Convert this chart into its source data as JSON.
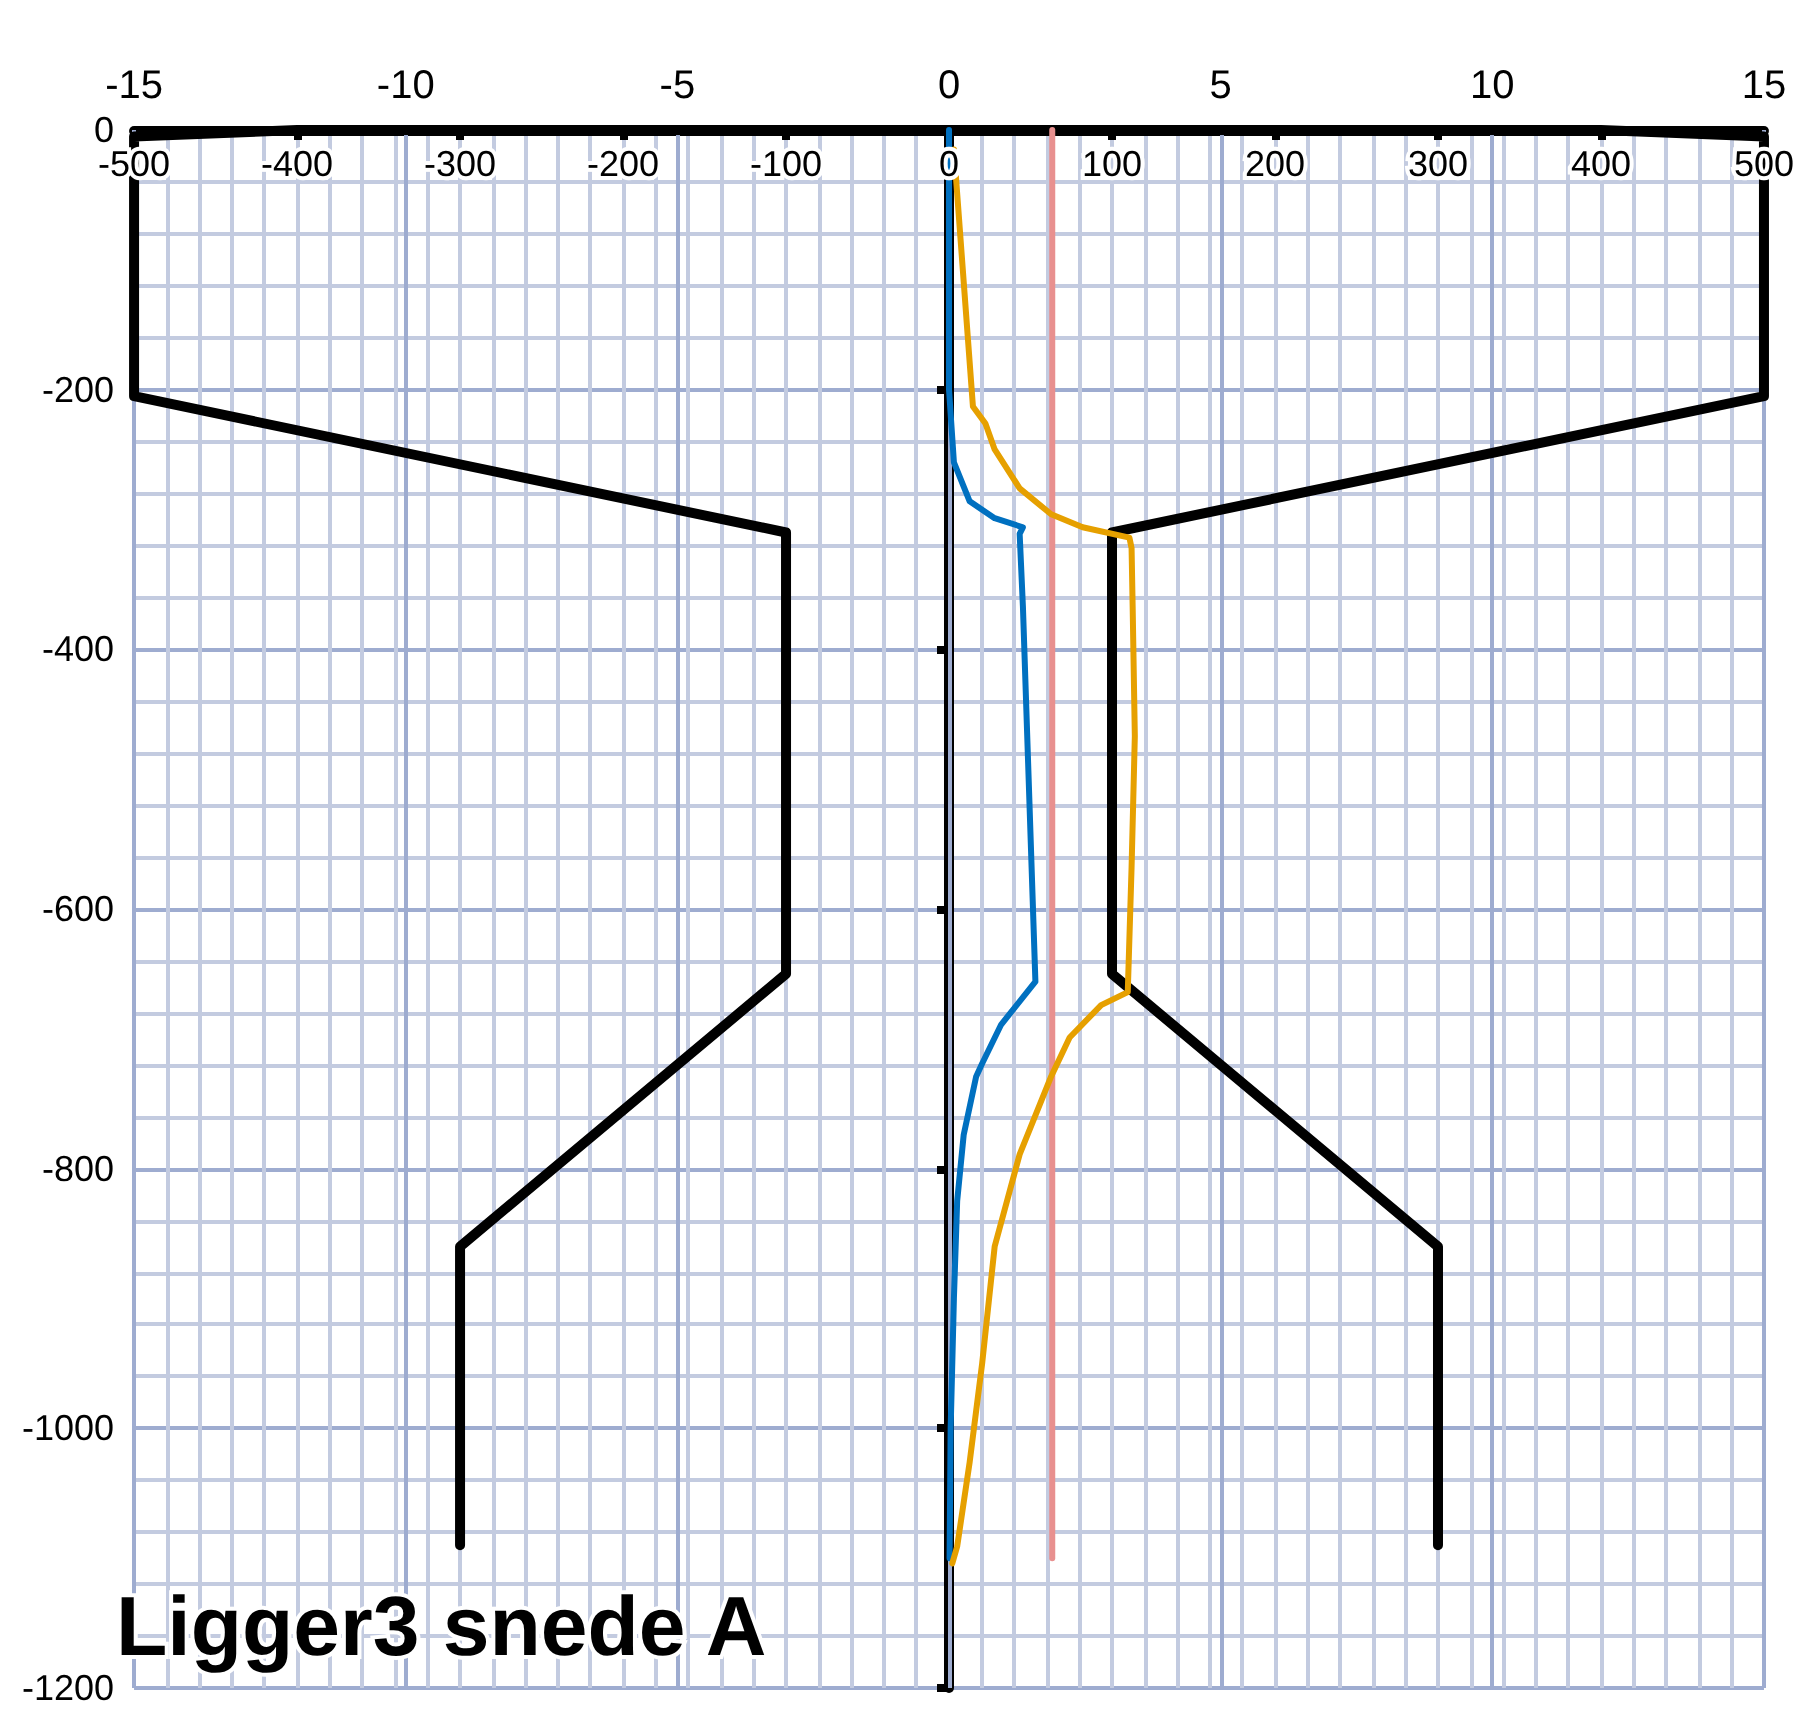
{
  "chart_data": {
    "type": "line",
    "title": "Ligger3 snede A",
    "xlim": [
      -500,
      500
    ],
    "xticks": [
      -500,
      -400,
      -300,
      -200,
      -100,
      0,
      100,
      200,
      300,
      400,
      500
    ],
    "x2lim": [
      -15,
      15
    ],
    "x2ticks": [
      -15,
      -10,
      -5,
      0,
      5,
      10,
      15
    ],
    "ylim": [
      -1200,
      0
    ],
    "yticks": [
      -1200,
      -1000,
      -800,
      -600,
      -400,
      -200,
      0
    ],
    "grid": true,
    "marker": "none",
    "line_style": "solid",
    "series": [
      {
        "color": "#000000",
        "x": [
          300,
          300,
          100,
          100,
          500,
          500,
          400,
          -400,
          -500,
          -500,
          -100,
          -100,
          -300,
          -300
        ],
        "values": [
          -1090,
          -860,
          -650,
          -310,
          -205,
          -5,
          0,
          0,
          -5,
          -205,
          -310,
          -650,
          -860,
          -1090
        ]
      },
      {
        "color": "#e8908f",
        "axis": "x2",
        "x": [
          1.9,
          1.9
        ],
        "values": [
          0,
          -1100
        ]
      },
      {
        "color": "#0070c0",
        "axis": "x2",
        "x": [
          0,
          0,
          0.09,
          0.38,
          0.84,
          1.36,
          1.3,
          1.36,
          1.59,
          0.96,
          0.61,
          0.5,
          0.27,
          0.15,
          0.09,
          0.03,
          0.01
        ],
        "values": [
          0,
          -200,
          -256,
          -286,
          -299,
          -306,
          -311,
          -367,
          -656,
          -689,
          -719,
          -729,
          -774,
          -825,
          -900,
          -1000,
          -1100
        ]
      },
      {
        "color": "#e6a000",
        "axis": "x2",
        "x": [
          0.09,
          0.44,
          0.67,
          0.84,
          1.3,
          1.88,
          2.46,
          3.32,
          3.36,
          3.38,
          3.42,
          3.36,
          3.29,
          2.8,
          2.22,
          1.88,
          1.59,
          1.3,
          0.84,
          0.61,
          0.38,
          0.15,
          0.06
        ],
        "values": [
          -15,
          -213,
          -226,
          -246,
          -276,
          -296,
          -306,
          -314,
          -322,
          -367,
          -467,
          -568,
          -664,
          -674,
          -699,
          -729,
          -759,
          -789,
          -860,
          -950,
          -1026,
          -1091,
          -1104
        ]
      }
    ]
  }
}
